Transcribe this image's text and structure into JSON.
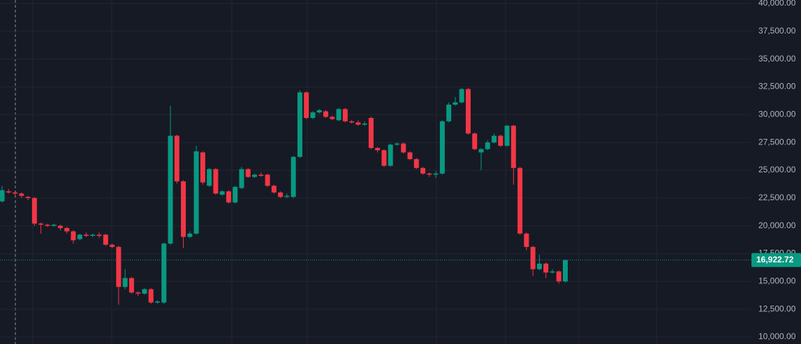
{
  "chart_data": {
    "type": "candlestick",
    "up_color": "#089981",
    "down_color": "#f23645",
    "grid": true,
    "ylim": [
      9370,
      40310
    ],
    "yticks": [
      {
        "value": 10000,
        "label": "10,000.00"
      },
      {
        "value": 12500,
        "label": "12,500.00"
      },
      {
        "value": 15000,
        "label": "15,000.00"
      },
      {
        "value": 17500,
        "label": "17,500.00"
      },
      {
        "value": 20000,
        "label": "20,000.00"
      },
      {
        "value": 22500,
        "label": "22,500.00"
      },
      {
        "value": 25000,
        "label": "25,000.00"
      },
      {
        "value": 27500,
        "label": "27,500.00"
      },
      {
        "value": 30000,
        "label": "30,000.00"
      },
      {
        "value": 32500,
        "label": "32,500.00"
      },
      {
        "value": 35000,
        "label": "35,000.00"
      },
      {
        "value": 37500,
        "label": "37,500.00"
      },
      {
        "value": 40000,
        "label": "40,000.00"
      }
    ],
    "last_price": {
      "value": 16922.72,
      "label": "16,922.72"
    },
    "open": [
      22200,
      23100,
      23000,
      22900,
      22600,
      22500,
      20200,
      20100,
      20000,
      20000,
      19800,
      19500,
      18800,
      19200,
      19100,
      19200,
      19200,
      18300,
      18100,
      14500,
      15300,
      14000,
      13900,
      14300,
      13100,
      13100,
      18400,
      28100,
      24000,
      19000,
      19300,
      26600,
      23600,
      25100,
      22800,
      23100,
      22100,
      23400,
      25100,
      24400,
      24600,
      24600,
      23600,
      23000,
      22600,
      22600,
      26200,
      32000,
      29700,
      30200,
      30300,
      29800,
      29500,
      30500,
      29400,
      29300,
      29100,
      29700,
      27000,
      26800,
      25400,
      27300,
      27400,
      26600,
      26000,
      25200,
      24700,
      24600,
      24700,
      29400,
      30900,
      31100,
      32300,
      28300,
      26600,
      26900,
      27500,
      28100,
      27200,
      29000,
      25200,
      19300,
      18100,
      16100,
      16600,
      15800,
      15900,
      15000
    ],
    "high": [
      23600,
      23300,
      23100,
      23000,
      22700,
      22600,
      20300,
      20200,
      20200,
      20100,
      19900,
      19600,
      19300,
      19400,
      19300,
      19400,
      19300,
      18400,
      18200,
      16100,
      15400,
      14100,
      14400,
      14400,
      13300,
      18500,
      30800,
      28200,
      24100,
      19500,
      27200,
      26700,
      25200,
      25200,
      23200,
      23200,
      23600,
      25300,
      25200,
      24700,
      24800,
      24700,
      23700,
      23100,
      22900,
      26300,
      32200,
      32100,
      30300,
      30500,
      30400,
      29900,
      30600,
      30600,
      29500,
      29500,
      29400,
      29800,
      27100,
      26900,
      27400,
      27500,
      27500,
      26700,
      26100,
      25300,
      24800,
      24900,
      29500,
      31100,
      31600,
      32400,
      32400,
      28400,
      27000,
      27700,
      28300,
      28200,
      29100,
      29100,
      25300,
      19400,
      18200,
      17400,
      16700,
      16100,
      16000,
      16922.72
    ],
    "low": [
      22100,
      22900,
      22700,
      22500,
      22300,
      20000,
      19300,
      19900,
      19900,
      19600,
      19300,
      18400,
      18700,
      19000,
      19000,
      18900,
      18200,
      18000,
      12900,
      14300,
      13900,
      13700,
      13800,
      13000,
      13000,
      13000,
      18300,
      23800,
      18000,
      18900,
      19200,
      23700,
      23500,
      22800,
      22700,
      22000,
      22000,
      23300,
      24300,
      24300,
      24400,
      23500,
      22900,
      22500,
      22500,
      22500,
      26100,
      29600,
      29600,
      30100,
      29700,
      29500,
      29400,
      29300,
      29200,
      29000,
      29000,
      26900,
      26600,
      25300,
      25300,
      27200,
      26500,
      25900,
      25100,
      24600,
      24400,
      24300,
      24600,
      29300,
      30800,
      31000,
      28200,
      26800,
      25000,
      26800,
      27400,
      27100,
      27100,
      23700,
      19200,
      17800,
      15500,
      16000,
      15300,
      15700,
      14800,
      14900
    ],
    "close": [
      23200,
      23000,
      22900,
      22700,
      22500,
      20200,
      20100,
      20000,
      20100,
      19800,
      19500,
      18700,
      19200,
      19100,
      19200,
      19100,
      18300,
      18100,
      14500,
      15300,
      14000,
      13900,
      14300,
      13100,
      13200,
      18400,
      28100,
      24000,
      19000,
      19300,
      26700,
      23900,
      25100,
      22900,
      23100,
      22100,
      23500,
      25100,
      24400,
      24600,
      24500,
      23600,
      23000,
      22600,
      22700,
      26200,
      32000,
      29700,
      30200,
      30400,
      29800,
      29600,
      30500,
      29400,
      29300,
      29100,
      29200,
      27000,
      26800,
      25400,
      27300,
      27400,
      26600,
      26000,
      25200,
      24700,
      24600,
      24700,
      29400,
      30900,
      31100,
      32300,
      28300,
      26900,
      26900,
      27500,
      28100,
      27200,
      29000,
      25200,
      19300,
      18100,
      16100,
      16600,
      15800,
      15900,
      15000,
      16922.72
    ]
  }
}
